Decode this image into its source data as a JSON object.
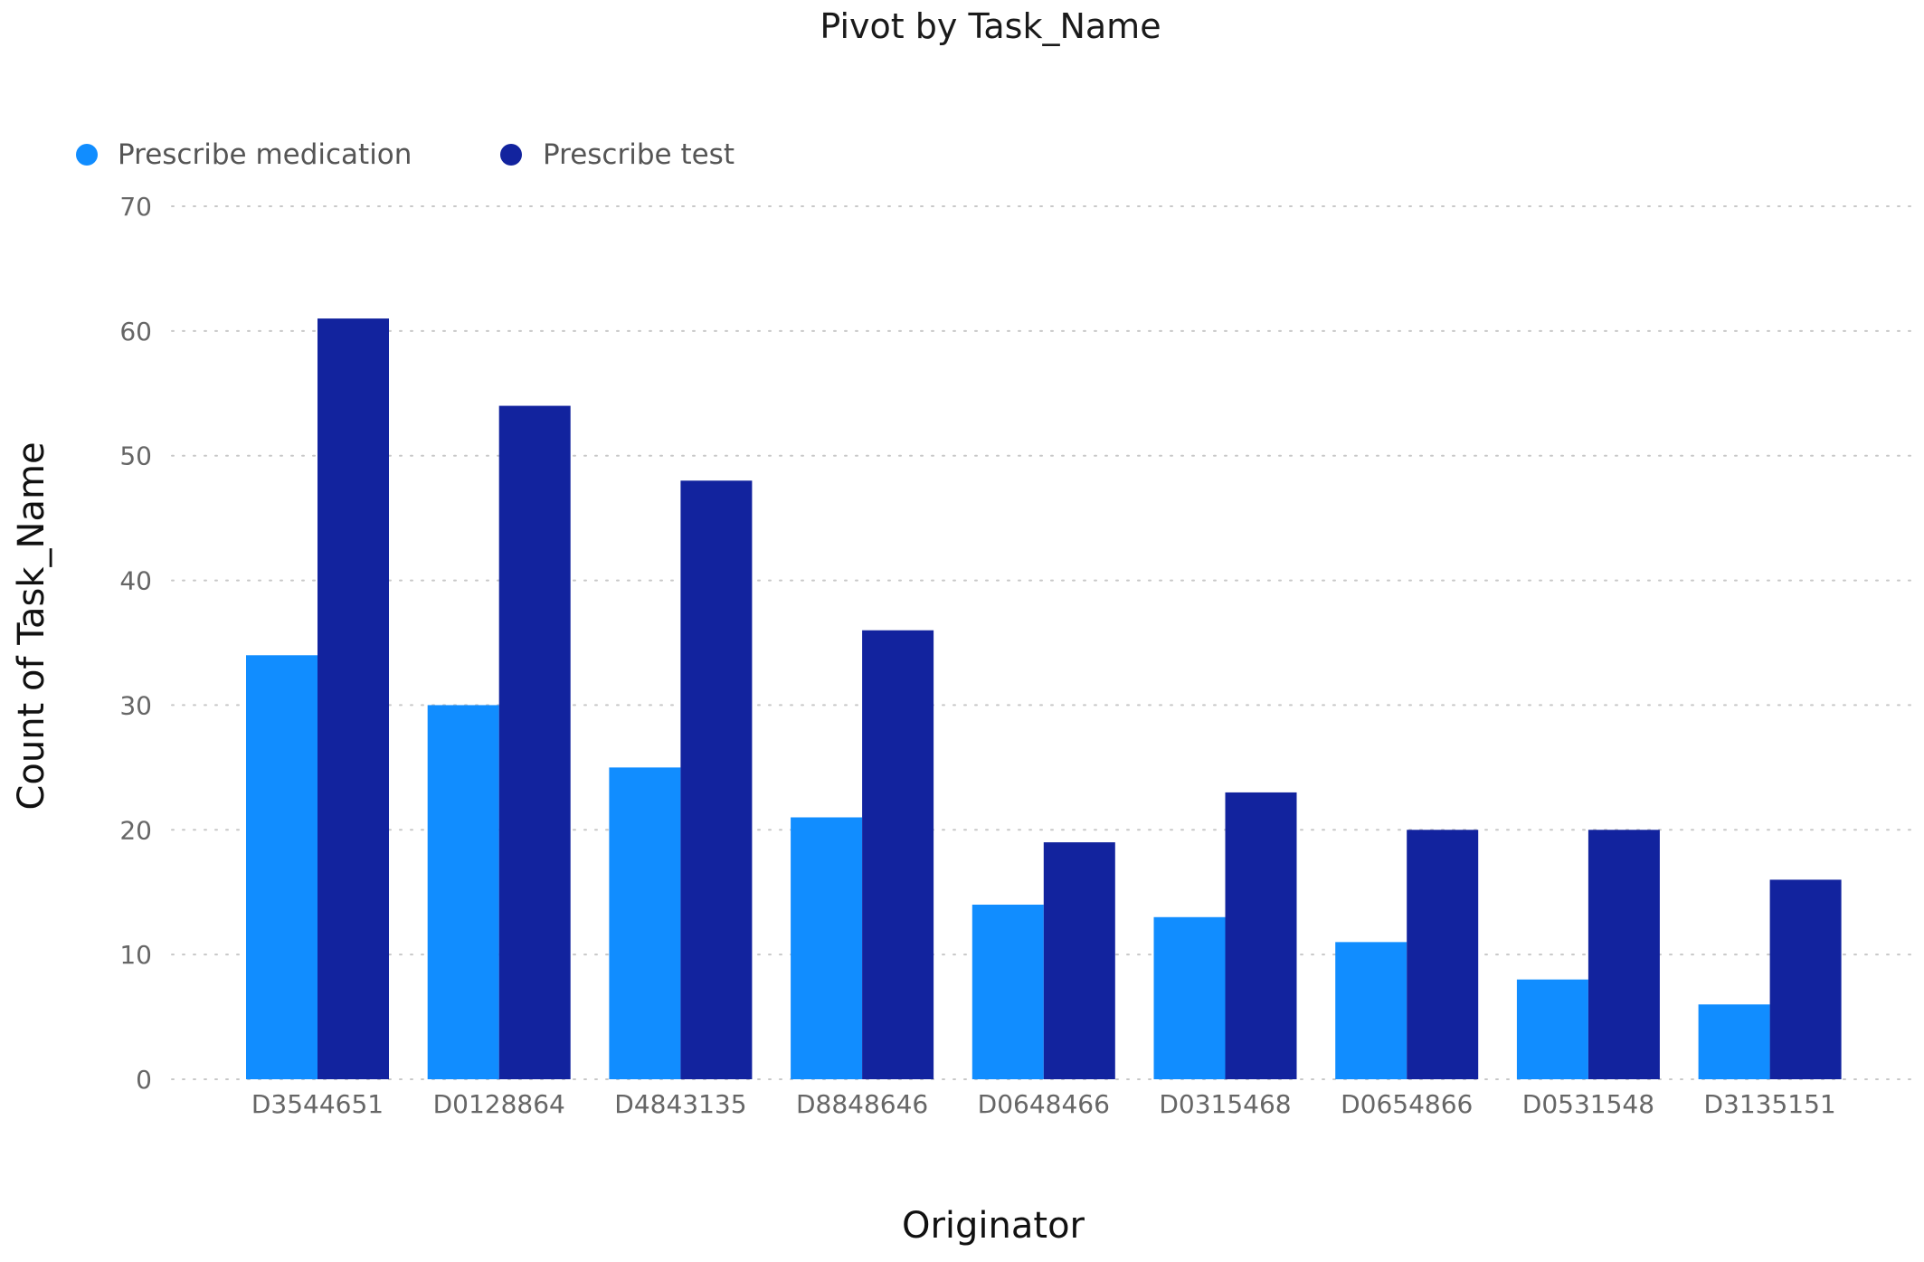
{
  "chart_data": {
    "type": "bar",
    "title": "Pivot by Task_Name",
    "xlabel": "Originator",
    "ylabel": "Count of Task_Name",
    "ylim": [
      0,
      70
    ],
    "yticks": [
      0,
      10,
      20,
      30,
      40,
      50,
      60,
      70
    ],
    "grid": true,
    "legend_position": "top-left",
    "categories": [
      "D3544651",
      "D0128864",
      "D4843135",
      "D8848646",
      "D0648466",
      "D0315468",
      "D0654866",
      "D0531548",
      "D3135151"
    ],
    "series": [
      {
        "name": "Prescribe medication",
        "color": "#118DFF",
        "values": [
          34,
          30,
          25,
          21,
          14,
          13,
          11,
          8,
          6
        ]
      },
      {
        "name": "Prescribe test",
        "color": "#12239E",
        "values": [
          61,
          54,
          48,
          36,
          19,
          23,
          20,
          20,
          16
        ]
      }
    ]
  }
}
